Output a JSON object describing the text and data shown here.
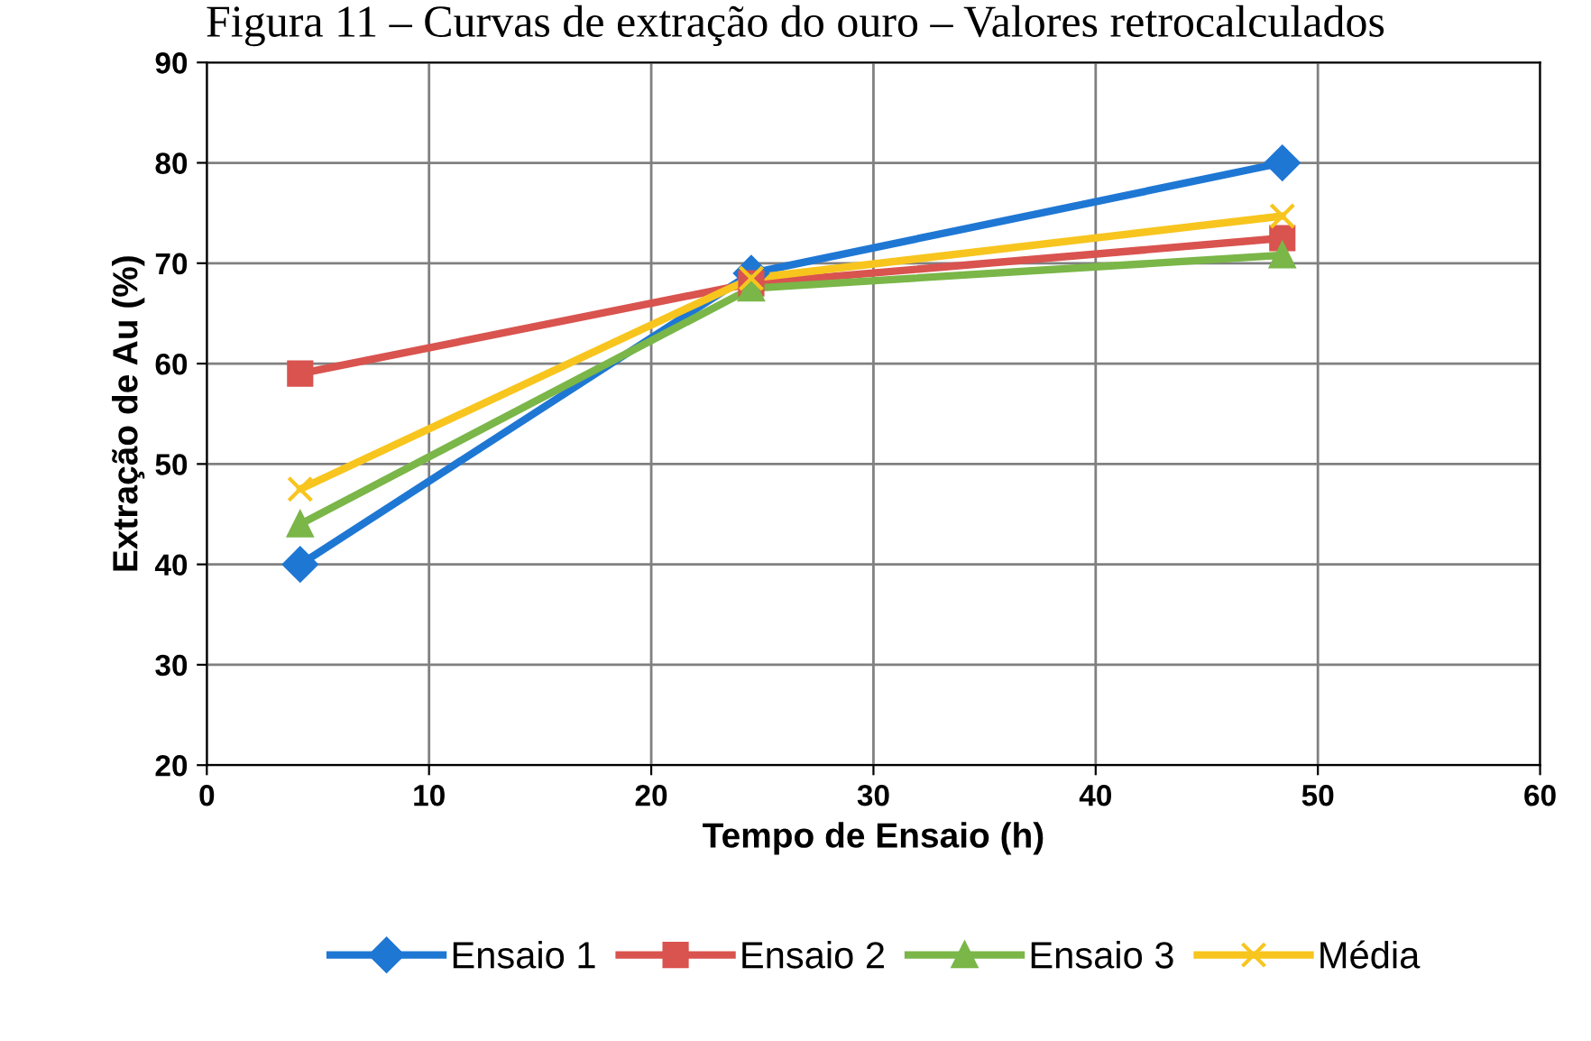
{
  "chart_data": {
    "type": "line",
    "title": "Figura 11 – Curvas de extração do ouro – Valores retrocalculados",
    "xlabel": "Tempo de Ensaio (h)",
    "ylabel": "Extração de Au (%)",
    "x": [
      4.2,
      24.5,
      48.4
    ],
    "series": [
      {
        "name": "Ensaio 1",
        "color": "#1f77d4",
        "marker": "diamond",
        "values": [
          40,
          69,
          80
        ]
      },
      {
        "name": "Ensaio 2",
        "color": "#d9534f",
        "marker": "square",
        "values": [
          59,
          68,
          72.5
        ]
      },
      {
        "name": "Ensaio 3",
        "color": "#7ab648",
        "marker": "triangle",
        "values": [
          44,
          67.5,
          70.8
        ]
      },
      {
        "name": "Média",
        "color": "#f7c51e",
        "marker": "cross",
        "values": [
          47.5,
          68.5,
          74.7
        ]
      }
    ],
    "xlim": [
      0,
      60
    ],
    "xticks": [
      0,
      10,
      20,
      30,
      40,
      50,
      60
    ],
    "ylim": [
      20,
      90
    ],
    "yticks": [
      20,
      30,
      40,
      50,
      60,
      70,
      80,
      90
    ],
    "grid": true,
    "legend": "bottom",
    "line_style": "solid"
  }
}
